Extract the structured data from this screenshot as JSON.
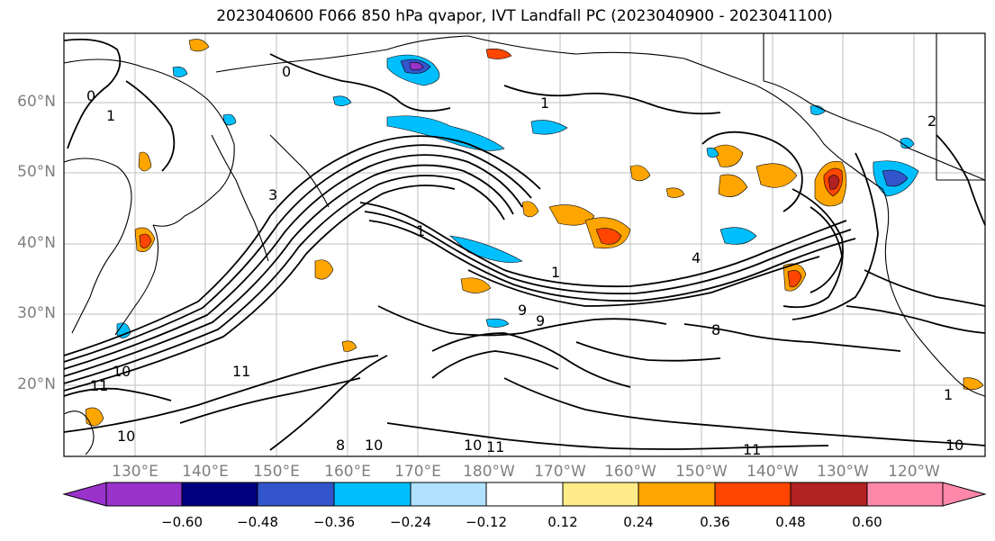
{
  "title": "2023040600 F066 850 hPa qvapor, IVT Landfall PC (2023040900 - 2023041100)",
  "y_labels": [
    "60°N",
    "50°N",
    "40°N",
    "30°N",
    "20°N"
  ],
  "x_labels": [
    "130°E",
    "140°E",
    "150°E",
    "160°E",
    "170°E",
    "180°W",
    "170°W",
    "160°W",
    "150°W",
    "140°W",
    "130°W",
    "120°W"
  ],
  "contour_labels": [
    "0",
    "1",
    "1",
    "0",
    "1",
    "10",
    "11",
    "10",
    "11",
    "8",
    "10",
    "10",
    "11",
    "11",
    "10",
    "1",
    "2",
    "4",
    "9",
    "9",
    "8",
    "1",
    "3"
  ],
  "colorbar": {
    "ticks": [
      "−0.60",
      "−0.48",
      "−0.36",
      "−0.24",
      "−0.12",
      "0.12",
      "0.24",
      "0.36",
      "0.48",
      "0.60"
    ],
    "colors": [
      "#9933cc",
      "#00007f",
      "#3355cc",
      "#00bfff",
      "#b0e2ff",
      "#ffffff",
      "#ffeb87",
      "#ffa500",
      "#ff4500",
      "#b22222",
      "#ff88aa"
    ]
  },
  "colors": {
    "positive": "#ffa500",
    "positive_strong": "#ff4500",
    "negative": "#00bfff",
    "negative_strong": "#3355cc",
    "contour": "#000000",
    "grid": "#b0b0b0"
  }
}
